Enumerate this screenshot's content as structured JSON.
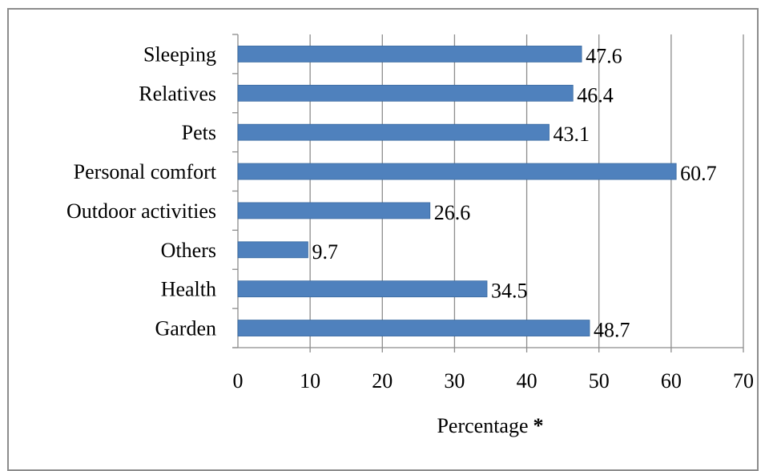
{
  "chart_data": {
    "type": "bar",
    "orientation": "horizontal",
    "categories": [
      "Sleeping",
      "Relatives",
      "Pets",
      "Personal comfort",
      "Outdoor activities",
      "Others",
      "Health",
      "Garden"
    ],
    "values": [
      47.6,
      46.4,
      43.1,
      60.7,
      26.6,
      9.7,
      34.5,
      48.7
    ],
    "data_labels": [
      "47.6",
      "46.4",
      "43.1",
      "60.7",
      "26.6",
      "9.7",
      "34.5",
      "48.7"
    ],
    "x_ticks": [
      0,
      10,
      20,
      30,
      40,
      50,
      60,
      70
    ],
    "xlim": [
      0,
      70
    ],
    "xlabel": "Percentage",
    "xlabel_mark": "*",
    "title": "",
    "ylabel": "",
    "grid": "vertical",
    "legend": "none",
    "bar_color": "#4f81bd",
    "grid_color": "#8c8c8c"
  }
}
